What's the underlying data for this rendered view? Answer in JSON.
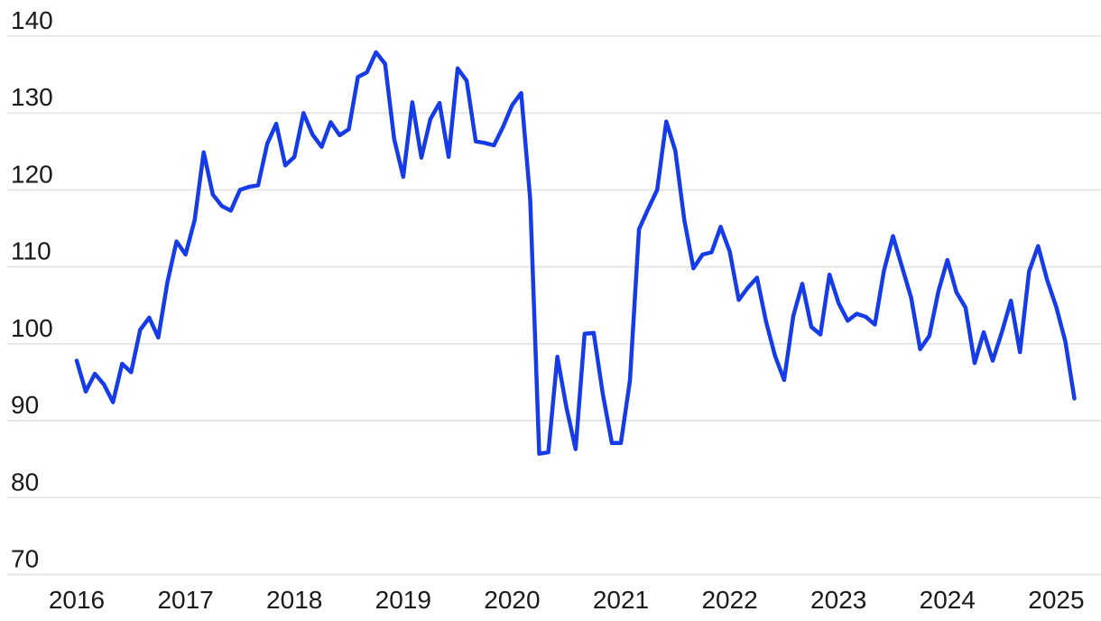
{
  "chart_data": {
    "type": "line",
    "title": "",
    "subtitle": "",
    "series_name": "consumer-confidence-index",
    "frequency": "monthly",
    "x_start": "2016-01",
    "x_end": "2025-03",
    "values": [
      97.8,
      93.8,
      96.1,
      94.7,
      92.4,
      97.4,
      96.3,
      101.8,
      103.4,
      100.8,
      108.0,
      113.3,
      111.6,
      116.1,
      124.9,
      119.4,
      117.9,
      117.3,
      120.0,
      120.4,
      120.6,
      126.0,
      128.6,
      123.2,
      124.3,
      130.0,
      127.2,
      125.6,
      128.8,
      127.1,
      127.9,
      134.7,
      135.3,
      137.9,
      136.4,
      126.6,
      121.7,
      131.4,
      124.2,
      129.2,
      131.3,
      124.3,
      135.8,
      134.2,
      126.3,
      126.1,
      125.8,
      128.2,
      131.0,
      132.6,
      118.8,
      85.7,
      85.9,
      98.3,
      91.7,
      86.3,
      101.3,
      101.4,
      93.5,
      87.1,
      87.1,
      95.2,
      114.9,
      117.5,
      120.0,
      128.9,
      125.1,
      116.0,
      109.8,
      111.6,
      111.9,
      115.2,
      112.0,
      105.7,
      107.3,
      108.6,
      102.9,
      98.4,
      95.3,
      103.6,
      107.8,
      102.2,
      101.2,
      109.0,
      105.3,
      103.0,
      103.9,
      103.5,
      102.5,
      109.5,
      114.0,
      110.0,
      106.0,
      99.3,
      101.0,
      106.8,
      110.9,
      106.7,
      104.7,
      97.5,
      101.5,
      97.8,
      101.5,
      105.6,
      98.9,
      109.4,
      112.7,
      108.3,
      104.8,
      100.3,
      92.9
    ],
    "x_tick_labels": [
      "2016",
      "2017",
      "2018",
      "2019",
      "2020",
      "2021",
      "2022",
      "2023",
      "2024",
      "2025"
    ],
    "y_tick_labels": [
      140,
      130,
      120,
      110,
      100,
      90,
      80,
      70
    ],
    "ylim": [
      70,
      140
    ],
    "grid": "horizontal",
    "legend": "none",
    "line_color": "#163ce8",
    "grid_color": "#e4e4e4",
    "label_color": "#1a1a1a",
    "background": "#ffffff"
  }
}
